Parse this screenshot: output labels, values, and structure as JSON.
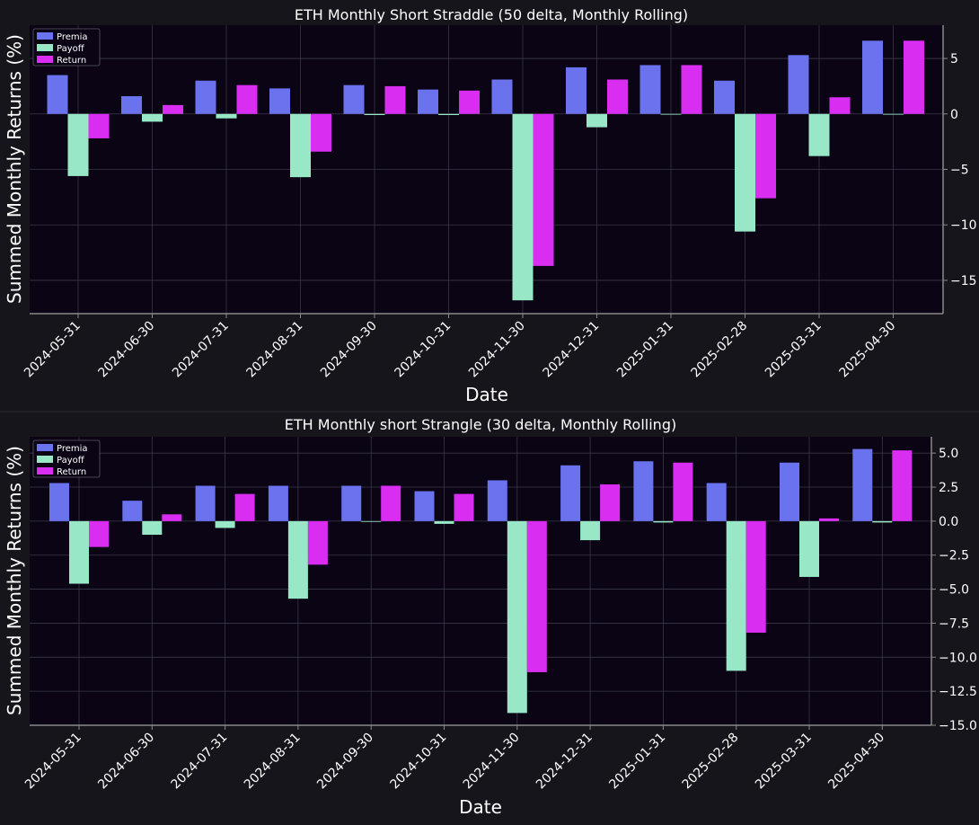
{
  "chart_data": [
    {
      "type": "bar",
      "title": "ETH Monthly Short Straddle (50 delta, Monthly Rolling)",
      "xlabel": "Date",
      "ylabel": "Summed Monthly Returns (%)",
      "categories": [
        "2024-05-31",
        "2024-06-30",
        "2024-07-31",
        "2024-08-31",
        "2024-09-30",
        "2024-10-31",
        "2024-11-30",
        "2024-12-31",
        "2025-01-31",
        "2025-02-28",
        "2025-03-31",
        "2025-04-30"
      ],
      "series": [
        {
          "name": "Premia",
          "color": "#6b72ee",
          "values": [
            3.5,
            1.6,
            3.0,
            2.3,
            2.6,
            2.2,
            3.1,
            4.2,
            4.4,
            3.0,
            5.3,
            6.6
          ]
        },
        {
          "name": "Payoff",
          "color": "#98e8c8",
          "values": [
            -5.6,
            -0.7,
            -0.4,
            -5.7,
            -0.1,
            -0.1,
            -16.8,
            -1.2,
            0.0,
            -10.6,
            -3.8,
            0.0
          ]
        },
        {
          "name": "Return",
          "color": "#d92ef2",
          "values": [
            -2.2,
            0.8,
            2.6,
            -3.4,
            2.5,
            2.1,
            -13.7,
            3.1,
            4.4,
            -7.6,
            1.5,
            6.6
          ]
        }
      ],
      "ylim": [
        -18,
        8
      ],
      "yticks": [
        5,
        0,
        -5,
        -10,
        -15
      ],
      "ytick_labels": [
        "5",
        "0",
        "−5",
        "−10",
        "−15"
      ],
      "grid": true,
      "legend_position": "top-left"
    },
    {
      "type": "bar",
      "title": "ETH Monthly short Strangle (30 delta, Monthly Rolling)",
      "xlabel": "Date",
      "ylabel": "Summed Monthly Returns (%)",
      "categories": [
        "2024-05-31",
        "2024-06-30",
        "2024-07-31",
        "2024-08-31",
        "2024-09-30",
        "2024-10-31",
        "2024-11-30",
        "2024-12-31",
        "2025-01-31",
        "2025-02-28",
        "2025-03-31",
        "2025-04-30"
      ],
      "series": [
        {
          "name": "Premia",
          "color": "#6b72ee",
          "values": [
            2.8,
            1.5,
            2.6,
            2.6,
            2.6,
            2.2,
            3.0,
            4.1,
            4.4,
            2.8,
            4.3,
            5.3
          ]
        },
        {
          "name": "Payoff",
          "color": "#98e8c8",
          "values": [
            -4.6,
            -1.0,
            -0.5,
            -5.7,
            0.0,
            -0.2,
            -14.1,
            -1.4,
            -0.1,
            -11.0,
            -4.1,
            -0.1
          ]
        },
        {
          "name": "Return",
          "color": "#d92ef2",
          "values": [
            -1.9,
            0.5,
            2.0,
            -3.2,
            2.6,
            2.0,
            -11.1,
            2.7,
            4.3,
            -8.2,
            0.2,
            5.2
          ]
        }
      ],
      "ylim": [
        -15,
        6.2
      ],
      "yticks": [
        5.0,
        2.5,
        0.0,
        -2.5,
        -5.0,
        -7.5,
        -10.0,
        -12.5,
        -15.0
      ],
      "ytick_labels": [
        "5.0",
        "2.5",
        "0.0",
        "−2.5",
        "−5.0",
        "−7.5",
        "−10.0",
        "−12.5",
        "−15.0"
      ],
      "grid": true,
      "legend_position": "top-left"
    }
  ]
}
